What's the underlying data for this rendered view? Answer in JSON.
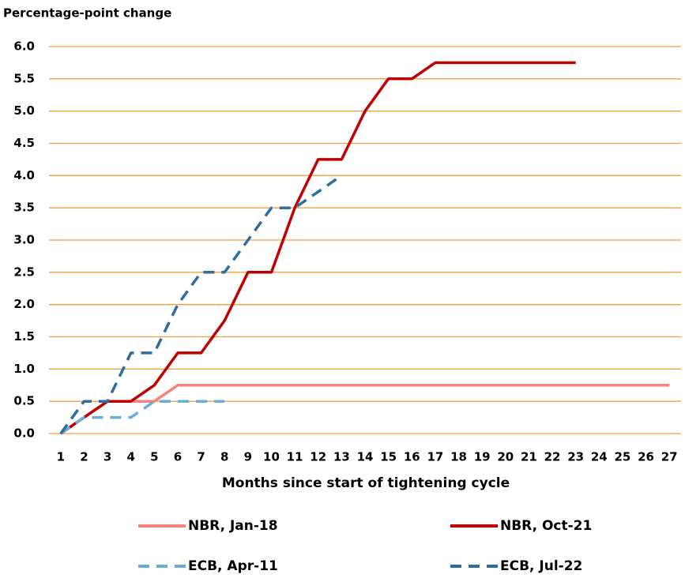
{
  "chart_data": {
    "type": "line",
    "y_axis_title": "Percentage-point change",
    "x_axis_title": "Months since start of tightening cycle",
    "categories": [
      "1",
      "2",
      "3",
      "4",
      "5",
      "6",
      "7",
      "8",
      "9",
      "10",
      "11",
      "12",
      "13",
      "14",
      "15",
      "16",
      "17",
      "18",
      "19",
      "20",
      "21",
      "22",
      "23",
      "24",
      "25",
      "26",
      "27"
    ],
    "ylim": [
      0,
      6
    ],
    "yticks": [
      {
        "value": 0,
        "label": "0.0"
      },
      {
        "value": 0.5,
        "label": "0.5"
      },
      {
        "value": 1,
        "label": "1.0"
      },
      {
        "value": 1.5,
        "label": "1.5"
      },
      {
        "value": 2,
        "label": "2.0"
      },
      {
        "value": 2.5,
        "label": "2.5"
      },
      {
        "value": 3,
        "label": "3.0"
      },
      {
        "value": 3.5,
        "label": "3.5"
      },
      {
        "value": 4,
        "label": "4.0"
      },
      {
        "value": 4.5,
        "label": "4.5"
      },
      {
        "value": 5,
        "label": "5.0"
      },
      {
        "value": 5.5,
        "label": "5.5"
      },
      {
        "value": 6,
        "label": "6.0"
      }
    ],
    "grid": true,
    "grid_color": "#f0a040",
    "series": [
      {
        "name": "NBR, Jan-18",
        "color": "#f4837d",
        "dashed": false,
        "values": [
          0,
          0.25,
          0.5,
          0.5,
          0.5,
          0.75,
          0.75,
          0.75,
          0.75,
          0.75,
          0.75,
          0.75,
          0.75,
          0.75,
          0.75,
          0.75,
          0.75,
          0.75,
          0.75,
          0.75,
          0.75,
          0.75,
          0.75,
          0.75,
          0.75,
          0.75,
          0.75
        ]
      },
      {
        "name": "NBR, Oct-21",
        "color": "#c00000",
        "dashed": false,
        "values": [
          0,
          0.25,
          0.5,
          0.5,
          0.75,
          1.25,
          1.25,
          1.75,
          2.5,
          2.5,
          3.5,
          4.25,
          4.25,
          5.0,
          5.5,
          5.5,
          5.75,
          5.75,
          5.75,
          5.75,
          5.75,
          5.75,
          5.75,
          null,
          null,
          null,
          null
        ]
      },
      {
        "name": "ECB, Apr-11",
        "color": "#6aaed6",
        "dashed": true,
        "values": [
          0,
          0.25,
          0.25,
          0.25,
          0.5,
          0.5,
          0.5,
          0.5,
          null,
          null,
          null,
          null,
          null,
          null,
          null,
          null,
          null,
          null,
          null,
          null,
          null,
          null,
          null,
          null,
          null,
          null,
          null
        ]
      },
      {
        "name": "ECB, Jul-22",
        "color": "#2e6e9e",
        "dashed": true,
        "values": [
          0,
          0.5,
          0.5,
          1.25,
          1.25,
          2.0,
          2.5,
          2.5,
          3.0,
          3.5,
          3.5,
          3.75,
          4.0,
          null,
          null,
          null,
          null,
          null,
          null,
          null,
          null,
          null,
          null,
          null,
          null,
          null,
          null
        ]
      }
    ]
  }
}
